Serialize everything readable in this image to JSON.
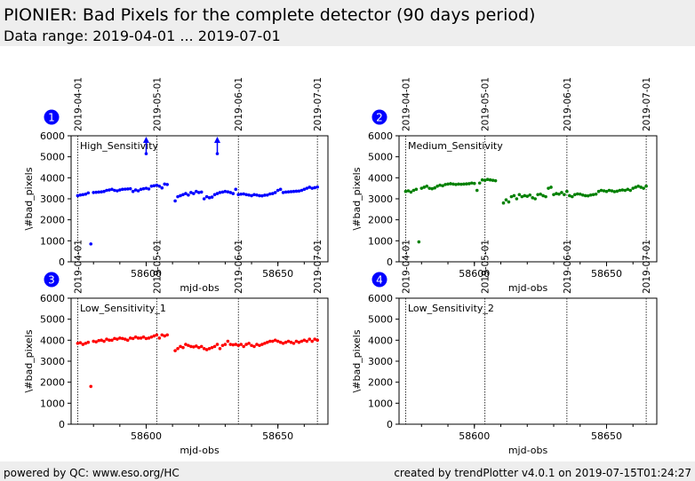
{
  "header": {
    "title": "PIONIER: Bad Pixels for the complete detector (90 days period)",
    "subtitle": "Data range: 2019-04-01 ... 2019-07-01"
  },
  "footer": {
    "left": "powered by QC: www.eso.org/HC",
    "right": "created by trendPlotter v4.0.1 on 2019-07-15T01:24:27"
  },
  "colors": {
    "high": "#0000ff",
    "medium": "#008000",
    "low1": "#ff0000",
    "badge": "#0000ff",
    "background_bar": "#eeeeee"
  },
  "chart_data": [
    {
      "type": "scatter",
      "panel_number": "1",
      "label": "High_Sensitivity",
      "xlabel": "mjd-obs",
      "ylabel": "\\#bad_pixels",
      "xlim": [
        57574,
        58669
      ],
      "ylim": [
        0,
        6000
      ],
      "yticks": [
        0,
        1000,
        2000,
        3000,
        4000,
        5000,
        6000
      ],
      "xticks": [
        58600,
        58650
      ],
      "date_markers": [
        {
          "label": "2019-04-01",
          "x": 58574
        },
        {
          "label": "2019-05-01",
          "x": 58604
        },
        {
          "label": "2019-06-01",
          "x": 58635
        },
        {
          "label": "2019-07-01",
          "x": 58665
        }
      ],
      "color": "#0000ff",
      "x": [
        58574,
        58575,
        58576,
        58577,
        58578,
        58579,
        58580,
        58581,
        58582,
        58583,
        58584,
        58585,
        58586,
        58587,
        58588,
        58589,
        58590,
        58591,
        58592,
        58593,
        58594,
        58595,
        58596,
        58597,
        58598,
        58599,
        58600,
        58601,
        58602,
        58603,
        58604,
        58605,
        58606,
        58607,
        58608,
        58611,
        58612,
        58613,
        58614,
        58615,
        58616,
        58617,
        58618,
        58619,
        58620,
        58621,
        58622,
        58623,
        58624,
        58625,
        58626,
        58627,
        58628,
        58629,
        58630,
        58631,
        58632,
        58633,
        58634,
        58635,
        58636,
        58637,
        58638,
        58639,
        58640,
        58641,
        58642,
        58643,
        58644,
        58645,
        58646,
        58647,
        58648,
        58649,
        58650,
        58651,
        58652,
        58653,
        58654,
        58655,
        58656,
        58657,
        58658,
        58659,
        58660,
        58661,
        58662,
        58663,
        58664,
        58665
      ],
      "y": [
        3150,
        3180,
        3200,
        3220,
        3280,
        850,
        3300,
        3310,
        3320,
        3330,
        3350,
        3400,
        3420,
        3450,
        3400,
        3380,
        3420,
        3450,
        3460,
        3470,
        3480,
        3350,
        3420,
        3380,
        3450,
        3480,
        3500,
        3470,
        3600,
        3620,
        3650,
        3600,
        3520,
        3700,
        3680,
        2900,
        3100,
        3150,
        3200,
        3250,
        3180,
        3300,
        3250,
        3350,
        3300,
        3320,
        3000,
        3100,
        3050,
        3080,
        3200,
        3250,
        3300,
        3320,
        3350,
        3330,
        3300,
        3250,
        3450,
        3200,
        3220,
        3230,
        3200,
        3180,
        3150,
        3200,
        3180,
        3150,
        3140,
        3170,
        3180,
        3230,
        3250,
        3300,
        3400,
        3450,
        3300,
        3320,
        3330,
        3340,
        3350,
        3360,
        3370,
        3400,
        3450,
        3500,
        3550,
        3500,
        3530,
        3560
      ],
      "outliers": [
        {
          "x": 58600,
          "y": 5150,
          "arrow_up": true
        },
        {
          "x": 58627,
          "y": 5150,
          "arrow_up": true
        }
      ]
    },
    {
      "type": "scatter",
      "panel_number": "2",
      "label": "Medium_Sensitivity",
      "xlabel": "mjd-obs",
      "ylabel": "\\#bad_pixels",
      "xlim": [
        57574,
        58669
      ],
      "ylim": [
        0,
        6000
      ],
      "yticks": [
        0,
        1000,
        2000,
        3000,
        4000,
        5000,
        6000
      ],
      "xticks": [
        58600,
        58650
      ],
      "date_markers": [
        {
          "label": "2019-04-01",
          "x": 58574
        },
        {
          "label": "2019-05-01",
          "x": 58604
        },
        {
          "label": "2019-06-01",
          "x": 58635
        },
        {
          "label": "2019-07-01",
          "x": 58665
        }
      ],
      "color": "#008000",
      "x": [
        58574,
        58575,
        58576,
        58577,
        58578,
        58579,
        58580,
        58581,
        58582,
        58583,
        58584,
        58585,
        58586,
        58587,
        58588,
        58589,
        58590,
        58591,
        58592,
        58593,
        58594,
        58595,
        58596,
        58597,
        58598,
        58599,
        58600,
        58601,
        58602,
        58603,
        58604,
        58605,
        58606,
        58607,
        58608,
        58611,
        58612,
        58613,
        58614,
        58615,
        58616,
        58617,
        58618,
        58619,
        58620,
        58621,
        58622,
        58623,
        58624,
        58625,
        58626,
        58627,
        58628,
        58629,
        58630,
        58631,
        58632,
        58633,
        58634,
        58635,
        58636,
        58637,
        58638,
        58639,
        58640,
        58641,
        58642,
        58643,
        58644,
        58645,
        58646,
        58647,
        58648,
        58649,
        58650,
        58651,
        58652,
        58653,
        58654,
        58655,
        58656,
        58657,
        58658,
        58659,
        58660,
        58661,
        58662,
        58663,
        58664,
        58665
      ],
      "y": [
        3350,
        3380,
        3320,
        3400,
        3450,
        950,
        3500,
        3550,
        3600,
        3500,
        3480,
        3520,
        3600,
        3650,
        3620,
        3680,
        3700,
        3720,
        3700,
        3680,
        3700,
        3690,
        3700,
        3710,
        3720,
        3750,
        3730,
        3400,
        3750,
        3900,
        3880,
        3920,
        3900,
        3880,
        3860,
        2800,
        2950,
        2850,
        3100,
        3150,
        3000,
        3200,
        3100,
        3150,
        3120,
        3180,
        3050,
        3000,
        3200,
        3220,
        3150,
        3100,
        3500,
        3550,
        3200,
        3250,
        3220,
        3300,
        3200,
        3350,
        3150,
        3100,
        3200,
        3230,
        3220,
        3180,
        3150,
        3140,
        3180,
        3200,
        3220,
        3350,
        3400,
        3380,
        3350,
        3400,
        3380,
        3340,
        3360,
        3400,
        3420,
        3400,
        3450,
        3400,
        3500,
        3550,
        3600,
        3550,
        3500,
        3600
      ]
    },
    {
      "type": "scatter",
      "panel_number": "3",
      "label": "Low_Sensitivity_1",
      "xlabel": "mjd-obs",
      "ylabel": "\\#bad_pixels",
      "xlim": [
        57574,
        58669
      ],
      "ylim": [
        0,
        6000
      ],
      "yticks": [
        0,
        1000,
        2000,
        3000,
        4000,
        5000,
        6000
      ],
      "xticks": [
        58600,
        58650
      ],
      "date_markers": [
        {
          "label": "2019-04-01",
          "x": 58574
        },
        {
          "label": "2019-05-01",
          "x": 58604
        },
        {
          "label": "2019-06-01",
          "x": 58635
        },
        {
          "label": "2019-07-01",
          "x": 58665
        }
      ],
      "color": "#ff0000",
      "x": [
        58574,
        58575,
        58576,
        58577,
        58578,
        58579,
        58580,
        58581,
        58582,
        58583,
        58584,
        58585,
        58586,
        58587,
        58588,
        58589,
        58590,
        58591,
        58592,
        58593,
        58594,
        58595,
        58596,
        58597,
        58598,
        58599,
        58600,
        58601,
        58602,
        58603,
        58604,
        58605,
        58606,
        58607,
        58608,
        58611,
        58612,
        58613,
        58614,
        58615,
        58616,
        58617,
        58618,
        58619,
        58620,
        58621,
        58622,
        58623,
        58624,
        58625,
        58626,
        58627,
        58628,
        58629,
        58630,
        58631,
        58632,
        58633,
        58634,
        58635,
        58636,
        58637,
        58638,
        58639,
        58640,
        58641,
        58642,
        58643,
        58644,
        58645,
        58646,
        58647,
        58648,
        58649,
        58650,
        58651,
        58652,
        58653,
        58654,
        58655,
        58656,
        58657,
        58658,
        58659,
        58660,
        58661,
        58662,
        58663,
        58664,
        58665
      ],
      "y": [
        3850,
        3880,
        3800,
        3850,
        3900,
        1800,
        3950,
        3920,
        3980,
        4000,
        3950,
        4050,
        4000,
        4000,
        4080,
        4050,
        4100,
        4080,
        4050,
        4000,
        4100,
        4080,
        4150,
        4100,
        4100,
        4150,
        4080,
        4100,
        4150,
        4200,
        4250,
        4100,
        4250,
        4200,
        4250,
        3500,
        3600,
        3700,
        3650,
        3800,
        3750,
        3700,
        3680,
        3720,
        3650,
        3700,
        3600,
        3550,
        3600,
        3650,
        3700,
        3800,
        3600,
        3750,
        3800,
        3950,
        3800,
        3780,
        3800,
        3750,
        3800,
        3700,
        3800,
        3850,
        3750,
        3700,
        3800,
        3750,
        3800,
        3850,
        3900,
        3950,
        3950,
        4000,
        3950,
        3900,
        3850,
        3900,
        3950,
        3900,
        3850,
        3950,
        3900,
        3950,
        4000,
        3950,
        4050,
        3950,
        4050,
        4000
      ]
    },
    {
      "type": "scatter",
      "panel_number": "4",
      "label": "Low_Sensitivity_2",
      "xlabel": "mjd-obs",
      "ylabel": "\\#bad_pixels",
      "xlim": [
        57574,
        58669
      ],
      "ylim": [
        0,
        6000
      ],
      "yticks": [
        0,
        1000,
        2000,
        3000,
        4000,
        5000,
        6000
      ],
      "xticks": [
        58600,
        58650
      ],
      "date_markers": [
        {
          "label": "2019-04-01",
          "x": 58574
        },
        {
          "label": "2019-05-01",
          "x": 58604
        },
        {
          "label": "2019-06-01",
          "x": 58635
        },
        {
          "label": "2019-07-01",
          "x": 58665
        }
      ],
      "color": "#000000",
      "x": [],
      "y": []
    }
  ]
}
